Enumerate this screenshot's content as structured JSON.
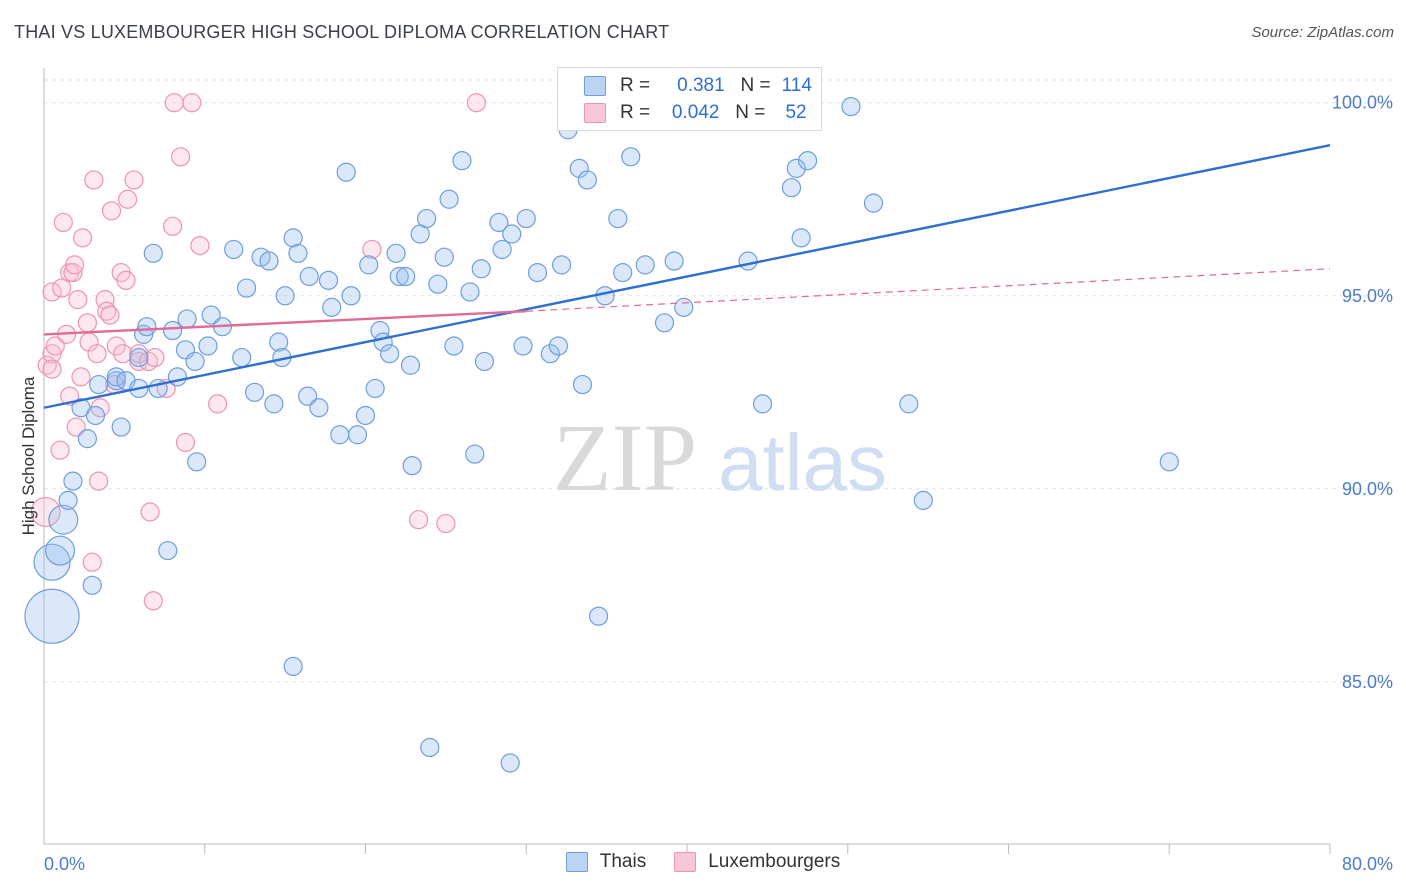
{
  "title": "THAI VS LUXEMBOURGER HIGH SCHOOL DIPLOMA CORRELATION CHART",
  "source": "Source: ZipAtlas.com",
  "watermark": {
    "zip": "ZIP",
    "atlas": "atlas"
  },
  "legend_top": {
    "r_label": "R =",
    "n_label": "N =",
    "rows": [
      {
        "r": "0.381",
        "n": "114"
      },
      {
        "r": "0.042",
        "n": "52"
      }
    ]
  },
  "chart_data": {
    "type": "scatter",
    "title": "THAI VS LUXEMBOURGER HIGH SCHOOL DIPLOMA CORRELATION CHART",
    "xlabel": "",
    "ylabel": "High School Diploma",
    "xlim": [
      0,
      80
    ],
    "ylim": [
      80.8,
      100.9
    ],
    "x_tick_labels": [
      "0.0%",
      "80.0%"
    ],
    "y_ticks": [
      85,
      90,
      95,
      100
    ],
    "y_tick_labels": [
      "85.0%",
      "90.0%",
      "95.0%",
      "100.0%"
    ],
    "legend_placement": "bottom",
    "grid": true,
    "colors": {
      "thais": "#7ba7e3",
      "luxembourgers": "#f4a6bf",
      "thais_line": "#2f6fcf",
      "lux_line": "#e06b96"
    },
    "series": [
      {
        "name": "Thais",
        "trend": {
          "x": [
            0,
            80
          ],
          "y": [
            92.1,
            98.9
          ]
        },
        "points": [
          [
            0.5,
            86.7,
            3
          ],
          [
            0.5,
            88.1,
            2
          ],
          [
            1,
            88.4,
            1.6
          ],
          [
            1.2,
            89.2,
            1.6
          ],
          [
            1.5,
            89.7,
            1
          ],
          [
            1.8,
            90.2,
            1
          ],
          [
            3,
            87.5,
            1
          ],
          [
            2.7,
            91.3,
            1
          ],
          [
            2.3,
            92.1,
            1
          ],
          [
            3.2,
            91.9,
            1
          ],
          [
            4.8,
            91.6,
            1
          ],
          [
            3.4,
            92.7,
            1
          ],
          [
            4.5,
            92.8,
            1
          ],
          [
            4.5,
            92.9,
            1
          ],
          [
            5.1,
            92.8,
            1
          ],
          [
            5.9,
            93.4,
            1
          ],
          [
            5.9,
            92.6,
            1
          ],
          [
            7.1,
            92.6,
            1
          ],
          [
            8.3,
            92.9,
            1
          ],
          [
            6.2,
            94,
            1
          ],
          [
            6.4,
            94.2,
            1
          ],
          [
            8,
            94.1,
            1
          ],
          [
            8.8,
            93.6,
            1
          ],
          [
            9.4,
            93.3,
            1
          ],
          [
            10.2,
            93.7,
            1
          ],
          [
            11.1,
            94.2,
            1
          ],
          [
            10.4,
            94.5,
            1
          ],
          [
            8.9,
            94.4,
            1
          ],
          [
            12.3,
            93.4,
            1
          ],
          [
            11.8,
            96.2,
            1
          ],
          [
            12.6,
            95.2,
            1
          ],
          [
            13.1,
            92.5,
            1
          ],
          [
            13.5,
            96,
            1
          ],
          [
            14,
            95.9,
            1
          ],
          [
            14.3,
            92.2,
            1
          ],
          [
            14.6,
            93.8,
            1
          ],
          [
            14.8,
            93.4,
            1
          ],
          [
            15,
            95,
            1
          ],
          [
            15.5,
            96.5,
            1
          ],
          [
            15.8,
            96.1,
            1
          ],
          [
            16.5,
            95.5,
            1
          ],
          [
            16.4,
            92.4,
            1
          ],
          [
            17.1,
            92.1,
            1
          ],
          [
            17.7,
            95.4,
            1
          ],
          [
            17.9,
            94.7,
            1
          ],
          [
            18.4,
            91.4,
            1
          ],
          [
            18.8,
            98.2,
            1
          ],
          [
            19.1,
            95,
            1
          ],
          [
            19.5,
            91.4,
            1
          ],
          [
            20,
            91.9,
            1
          ],
          [
            20.2,
            95.8,
            1
          ],
          [
            20.6,
            92.6,
            1
          ],
          [
            20.9,
            94.1,
            1
          ],
          [
            21.1,
            93.8,
            1
          ],
          [
            21.5,
            93.5,
            1
          ],
          [
            21.9,
            96.1,
            1
          ],
          [
            22.1,
            95.5,
            1
          ],
          [
            22.5,
            95.5,
            1
          ],
          [
            22.8,
            93.2,
            1
          ],
          [
            22.9,
            90.6,
            1
          ],
          [
            23.4,
            96.6,
            1
          ],
          [
            23.8,
            97,
            1
          ],
          [
            24.5,
            95.3,
            1
          ],
          [
            24.9,
            96,
            1
          ],
          [
            25.2,
            97.5,
            1
          ],
          [
            25.5,
            93.7,
            1
          ],
          [
            26,
            98.5,
            1
          ],
          [
            26.5,
            95.1,
            1
          ],
          [
            26.8,
            90.9,
            1
          ],
          [
            27.2,
            95.7,
            1
          ],
          [
            27.4,
            93.3,
            1
          ],
          [
            28.3,
            96.9,
            1
          ],
          [
            28.5,
            96.2,
            1
          ],
          [
            29.1,
            96.6,
            1
          ],
          [
            29.8,
            93.7,
            1
          ],
          [
            30,
            97,
            1
          ],
          [
            30.7,
            95.6,
            1
          ],
          [
            31.5,
            93.5,
            1
          ],
          [
            32,
            93.7,
            1
          ],
          [
            32.2,
            95.8,
            1
          ],
          [
            32.6,
            99.3,
            1
          ],
          [
            33.3,
            98.3,
            1
          ],
          [
            33.5,
            92.7,
            1
          ],
          [
            33.8,
            98,
            1
          ],
          [
            34.5,
            86.7,
            1
          ],
          [
            34.9,
            95,
            1
          ],
          [
            35.7,
            97,
            1
          ],
          [
            36,
            95.6,
            1
          ],
          [
            36.5,
            98.6,
            1
          ],
          [
            37.4,
            95.8,
            1
          ],
          [
            38.6,
            94.3,
            1
          ],
          [
            39.2,
            95.9,
            1
          ],
          [
            39.8,
            94.7,
            1
          ],
          [
            39.9,
            99.9,
            1
          ],
          [
            41.8,
            99.9,
            1
          ],
          [
            43.8,
            95.9,
            1
          ],
          [
            44.7,
            92.2,
            1
          ],
          [
            46.5,
            97.8,
            1
          ],
          [
            46.8,
            98.3,
            1
          ],
          [
            47.1,
            96.5,
            1
          ],
          [
            47.5,
            98.5,
            1
          ],
          [
            50.2,
            99.9,
            1
          ],
          [
            51.6,
            97.4,
            1
          ],
          [
            53.8,
            92.2,
            1
          ],
          [
            54.7,
            89.7,
            1
          ],
          [
            70,
            90.7,
            1
          ],
          [
            15.5,
            85.4,
            1
          ],
          [
            24,
            83.3,
            1
          ],
          [
            29,
            82.9,
            1
          ],
          [
            7.7,
            88.4,
            1
          ],
          [
            9.5,
            90.7,
            1
          ],
          [
            6.8,
            96.1,
            1
          ]
        ]
      },
      {
        "name": "Luxembourgers",
        "trend": {
          "x": [
            0,
            30
          ],
          "y": [
            94.0,
            94.6
          ]
        },
        "trend_extension": {
          "x": [
            30,
            80
          ],
          "y": [
            94.6,
            95.7
          ]
        },
        "points": [
          [
            0.1,
            89.4,
            1.6
          ],
          [
            0.2,
            93.2,
            1
          ],
          [
            0.5,
            93.5,
            1
          ],
          [
            0.5,
            95.1,
            1
          ],
          [
            0.5,
            93.1,
            1
          ],
          [
            0.7,
            93.7,
            1
          ],
          [
            1,
            91,
            1
          ],
          [
            1.1,
            95.2,
            1
          ],
          [
            1.2,
            96.9,
            1
          ],
          [
            1.4,
            94,
            1
          ],
          [
            1.6,
            92.4,
            1
          ],
          [
            1.6,
            95.6,
            1
          ],
          [
            1.8,
            95.6,
            1
          ],
          [
            1.9,
            95.8,
            1
          ],
          [
            2,
            91.6,
            1
          ],
          [
            2.1,
            94.9,
            1
          ],
          [
            2.3,
            92.9,
            1
          ],
          [
            2.4,
            96.5,
            1
          ],
          [
            2.7,
            94.3,
            1
          ],
          [
            2.8,
            93.8,
            1
          ],
          [
            3,
            88.1,
            1
          ],
          [
            3.1,
            98,
            1
          ],
          [
            3.3,
            93.5,
            1
          ],
          [
            3.4,
            90.2,
            1
          ],
          [
            3.5,
            92.1,
            1
          ],
          [
            3.8,
            94.9,
            1
          ],
          [
            3.9,
            94.6,
            1
          ],
          [
            4.1,
            94.5,
            1
          ],
          [
            4.2,
            97.2,
            1
          ],
          [
            4.4,
            92.7,
            1
          ],
          [
            4.5,
            93.7,
            1
          ],
          [
            4.8,
            95.6,
            1
          ],
          [
            4.9,
            93.5,
            1
          ],
          [
            5.1,
            95.4,
            1
          ],
          [
            5.2,
            97.5,
            1
          ],
          [
            5.9,
            93.3,
            1
          ],
          [
            5.9,
            93.5,
            1
          ],
          [
            5.6,
            98,
            1
          ],
          [
            6.5,
            93.3,
            1
          ],
          [
            6.6,
            89.4,
            1
          ],
          [
            6.8,
            87.1,
            1
          ],
          [
            6.9,
            93.4,
            1
          ],
          [
            7.6,
            92.6,
            1
          ],
          [
            8,
            96.8,
            1
          ],
          [
            8.5,
            98.6,
            1
          ],
          [
            8.8,
            91.2,
            1
          ],
          [
            8.1,
            100,
            1
          ],
          [
            9.2,
            100,
            1
          ],
          [
            9.7,
            96.3,
            1
          ],
          [
            10.8,
            92.2,
            1
          ],
          [
            20.4,
            96.2,
            1
          ],
          [
            23.3,
            89.2,
            1
          ],
          [
            25,
            89.1,
            1
          ],
          [
            26.9,
            100,
            1
          ]
        ]
      }
    ]
  }
}
